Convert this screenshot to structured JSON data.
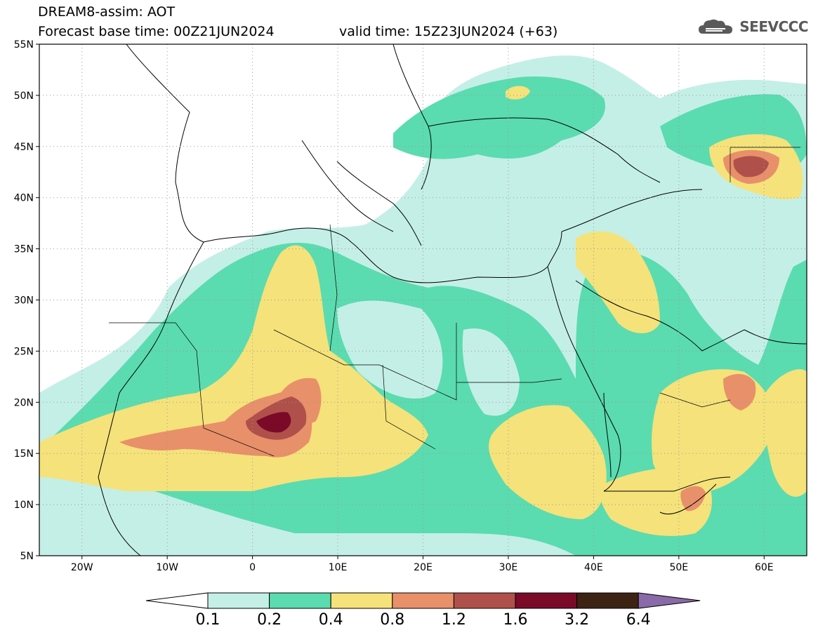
{
  "title": {
    "line1": "DREAM8-assim: AOT",
    "line2": "Forecast base time: 00Z21JUN2024",
    "valid": "valid time: 15Z23JUN2024 (+63)"
  },
  "logo": {
    "text": "SEEVCCC",
    "icon": "cloud-icon",
    "color": "#5a5a5a"
  },
  "map": {
    "region": "North Africa, Europe and Middle East",
    "lon_range": [
      -25,
      65
    ],
    "lat_range": [
      5,
      55
    ],
    "lat_ticks": [
      {
        "v": 55,
        "label": "55N"
      },
      {
        "v": 50,
        "label": "50N"
      },
      {
        "v": 45,
        "label": "45N"
      },
      {
        "v": 40,
        "label": "40N"
      },
      {
        "v": 35,
        "label": "35N"
      },
      {
        "v": 30,
        "label": "30N"
      },
      {
        "v": 25,
        "label": "25N"
      },
      {
        "v": 20,
        "label": "20N"
      },
      {
        "v": 15,
        "label": "15N"
      },
      {
        "v": 10,
        "label": "10N"
      },
      {
        "v": 5,
        "label": "5N"
      }
    ],
    "lon_ticks": [
      {
        "v": -20,
        "label": "20W"
      },
      {
        "v": -10,
        "label": "10W"
      },
      {
        "v": 0,
        "label": "0"
      },
      {
        "v": 10,
        "label": "10E"
      },
      {
        "v": 20,
        "label": "20E"
      },
      {
        "v": 30,
        "label": "30E"
      },
      {
        "v": 40,
        "label": "40E"
      },
      {
        "v": 50,
        "label": "50E"
      },
      {
        "v": 60,
        "label": "60E"
      }
    ],
    "grid": "dotted"
  },
  "colorbar": {
    "levels": [
      "0.1",
      "0.2",
      "0.4",
      "0.8",
      "1.2",
      "1.6",
      "3.2",
      "6.4"
    ],
    "colors": [
      "#ffffff",
      "#c4efe6",
      "#5bdbb0",
      "#f5e27a",
      "#e8906a",
      "#b0504a",
      "#7a0a28",
      "#3d2314",
      "#8a6aa8"
    ]
  }
}
